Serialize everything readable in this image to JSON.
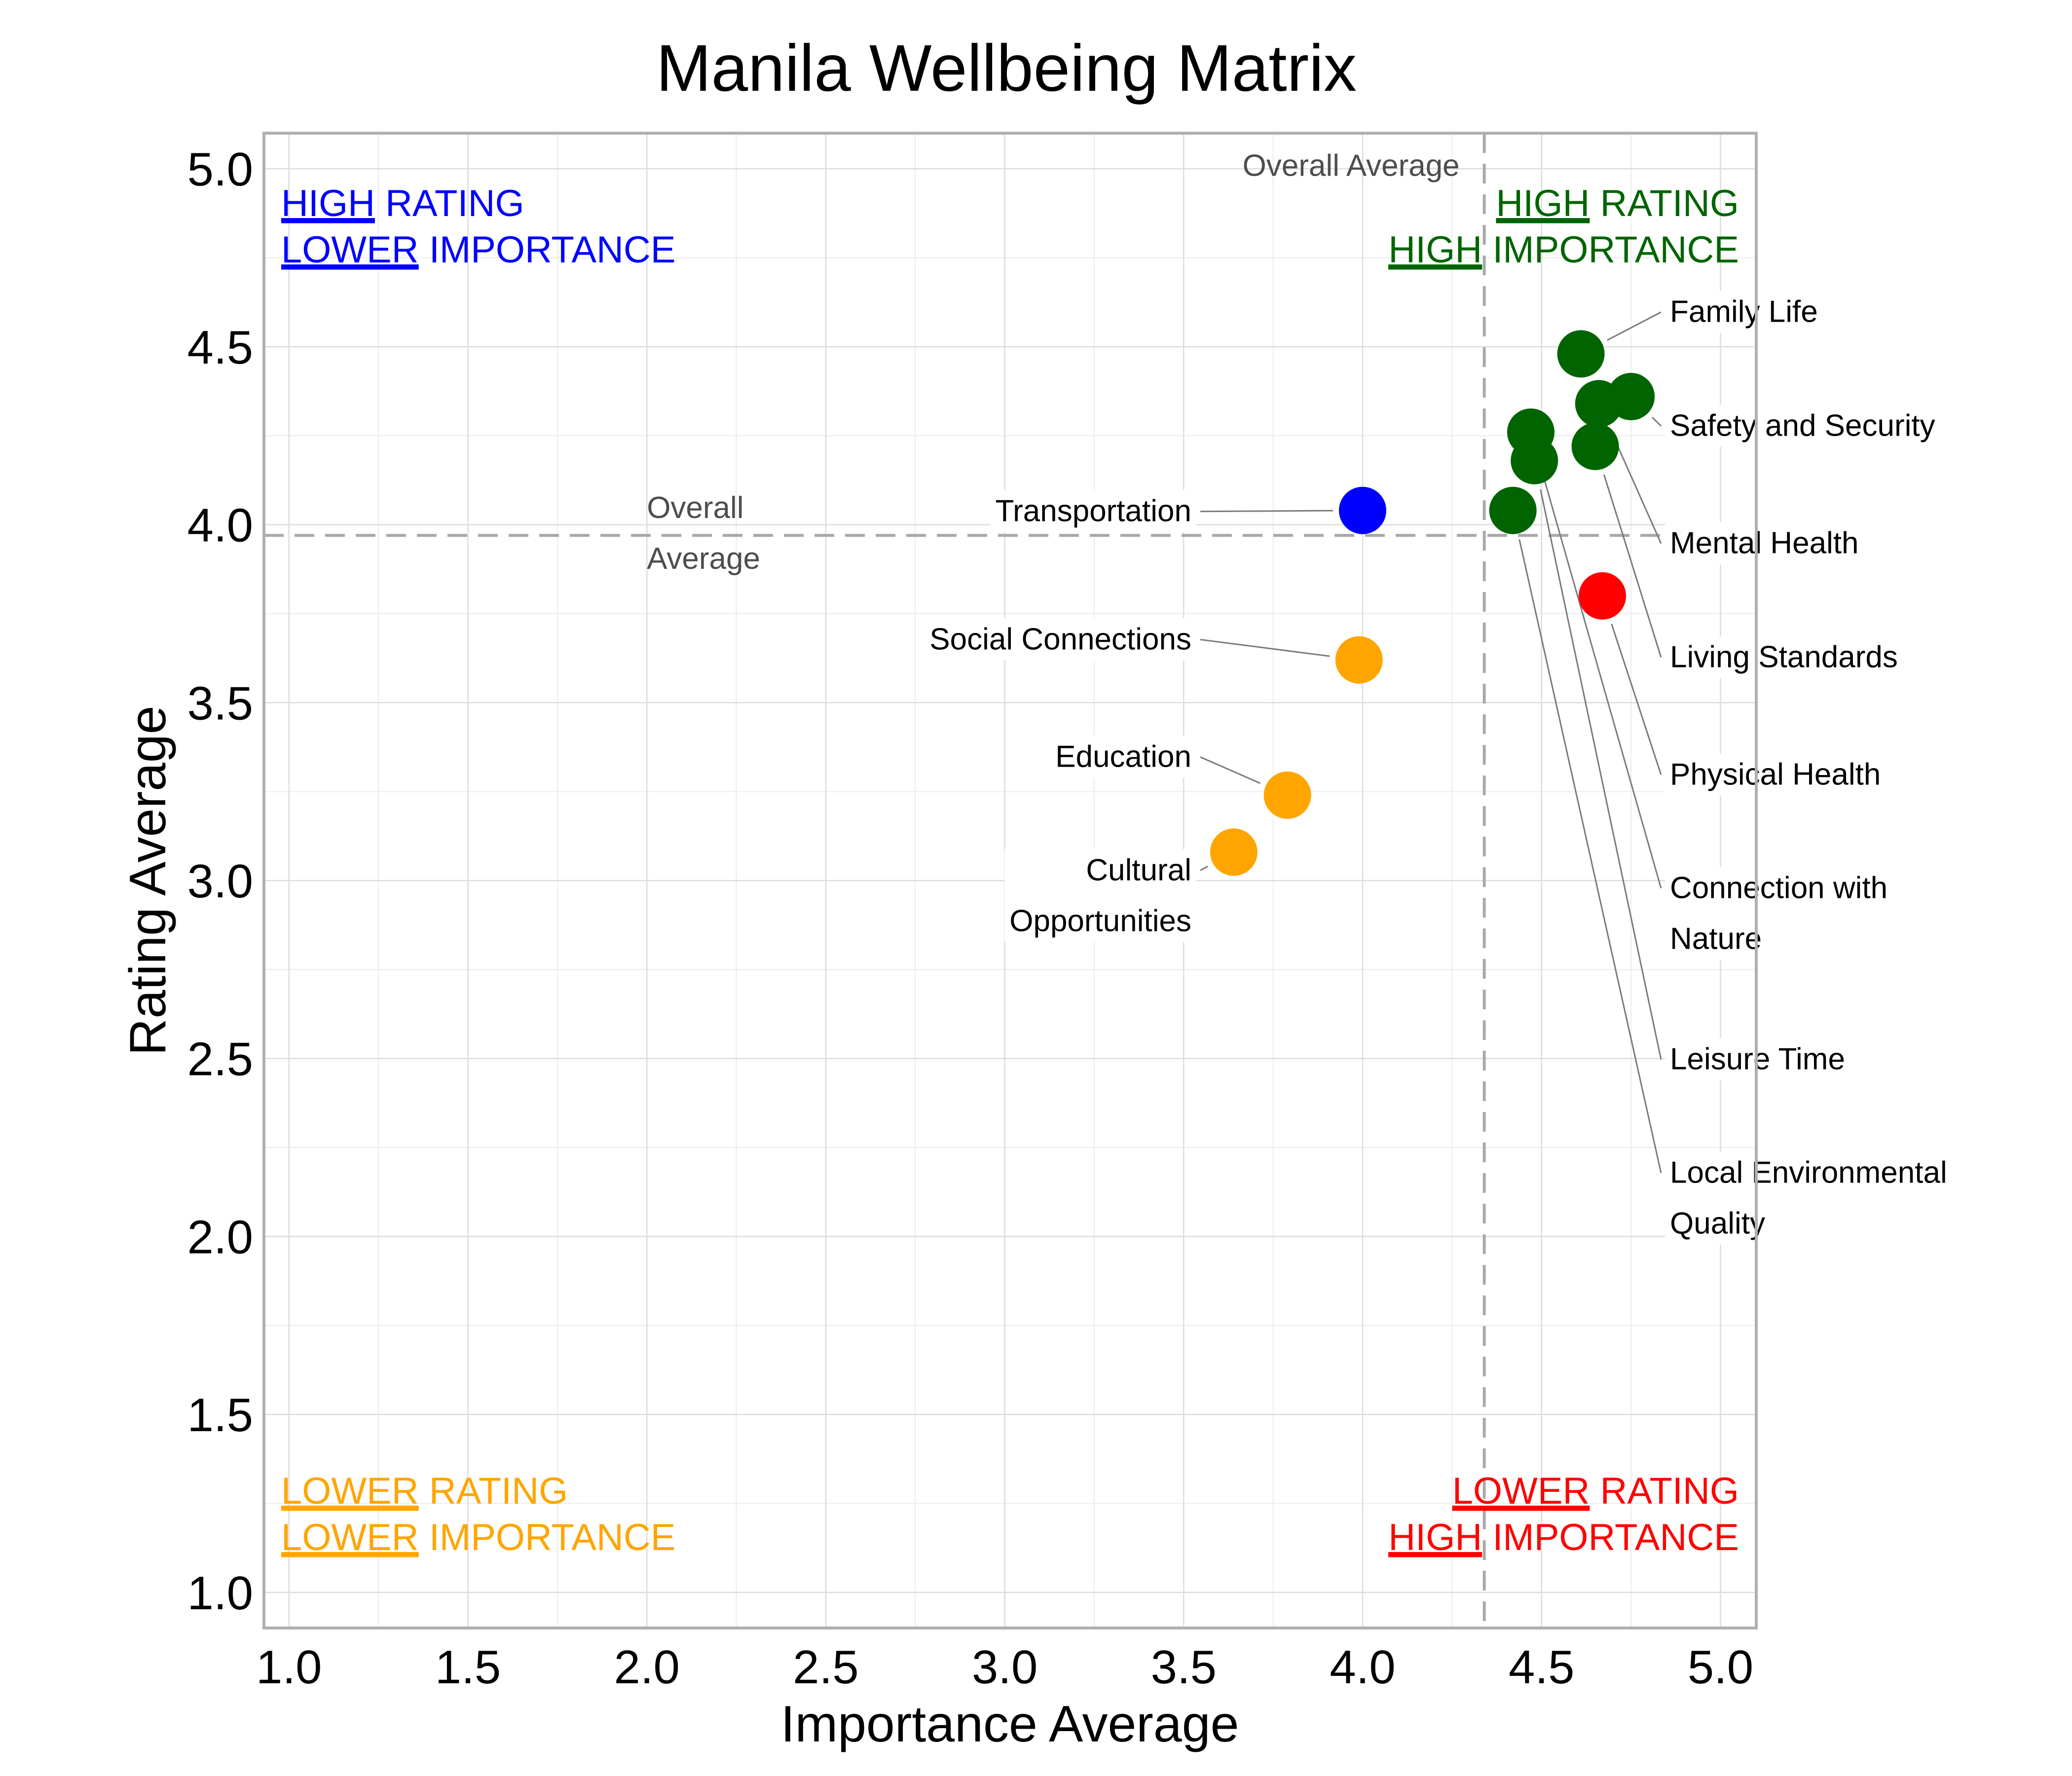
{
  "chart_data": {
    "type": "scatter",
    "title": "Manila Wellbeing Matrix",
    "xlabel": "Importance Average",
    "ylabel": "Rating Average",
    "xlim": [
      0.93,
      5.1
    ],
    "ylim": [
      0.9,
      5.1
    ],
    "xticks": [
      "1.0",
      "1.5",
      "2.0",
      "2.5",
      "3.0",
      "3.5",
      "4.0",
      "4.5",
      "5.0"
    ],
    "yticks": [
      "1.0",
      "1.5",
      "2.0",
      "2.5",
      "3.0",
      "3.5",
      "4.0",
      "4.5",
      "5.0"
    ],
    "grid": true,
    "overall_average": {
      "importance": 4.34,
      "rating": 3.97,
      "vertical_label": "Overall Average",
      "horizontal_label": [
        "Overall",
        "Average"
      ]
    },
    "quadrants": [
      {
        "position": "top-left",
        "color": "#0000ff",
        "lines": [
          [
            "HIGH",
            " RATING"
          ],
          [
            "LOWER",
            " IMPORTANCE"
          ]
        ]
      },
      {
        "position": "top-right",
        "color": "#006400",
        "lines": [
          [
            "HIGH",
            " RATING"
          ],
          [
            "HIGH",
            " IMPORTANCE"
          ]
        ]
      },
      {
        "position": "bottom-left",
        "color": "#ffa500",
        "lines": [
          [
            "LOWER",
            " RATING"
          ],
          [
            "LOWER",
            " IMPORTANCE"
          ]
        ]
      },
      {
        "position": "bottom-right",
        "color": "#ff0000",
        "lines": [
          [
            "LOWER",
            " RATING"
          ],
          [
            "HIGH",
            " IMPORTANCE"
          ]
        ]
      }
    ],
    "points": [
      {
        "name": "Family Life",
        "label_lines": [
          "Family Life"
        ],
        "x": 4.61,
        "y": 4.48,
        "color": "#006400",
        "side": "right",
        "label_y": 4.6
      },
      {
        "name": "Safety and Security",
        "label_lines": [
          "Safety and Security"
        ],
        "x": 4.75,
        "y": 4.36,
        "color": "#006400",
        "side": "right",
        "label_y": 4.28
      },
      {
        "name": "Mental Health",
        "label_lines": [
          "Mental Health"
        ],
        "x": 4.66,
        "y": 4.34,
        "color": "#006400",
        "side": "right",
        "label_y": 3.95
      },
      {
        "name": "Living Standards",
        "label_lines": [
          "Living Standards"
        ],
        "x": 4.65,
        "y": 4.22,
        "color": "#006400",
        "side": "right",
        "label_y": 3.63
      },
      {
        "name": "Physical Health",
        "label_lines": [
          "Physical Health"
        ],
        "x": 4.67,
        "y": 3.8,
        "color": "#ff0000",
        "side": "right",
        "label_y": 3.3
      },
      {
        "name": "Connection with Nature",
        "label_lines": [
          "Connection with",
          "Nature"
        ],
        "x": 4.47,
        "y": 4.26,
        "color": "#006400",
        "side": "right",
        "label_y": 2.91
      },
      {
        "name": "Leisure Time",
        "label_lines": [
          "Leisure Time"
        ],
        "x": 4.48,
        "y": 4.18,
        "color": "#006400",
        "side": "right",
        "label_y": 2.5
      },
      {
        "name": "Local Environmental Quality",
        "label_lines": [
          "Local Environmental",
          "Quality"
        ],
        "x": 4.42,
        "y": 4.04,
        "color": "#006400",
        "side": "right",
        "label_y": 2.11
      },
      {
        "name": "Transportation",
        "label_lines": [
          "Transportation"
        ],
        "x": 4.0,
        "y": 4.04,
        "color": "#0000ff",
        "side": "left",
        "label_y": 4.04
      },
      {
        "name": "Social Connections",
        "label_lines": [
          "Social Connections"
        ],
        "x": 3.99,
        "y": 3.62,
        "color": "#ffa500",
        "side": "left",
        "label_y": 3.68
      },
      {
        "name": "Education",
        "label_lines": [
          "Education"
        ],
        "x": 3.79,
        "y": 3.24,
        "color": "#ffa500",
        "side": "left",
        "label_y": 3.35
      },
      {
        "name": "Cultural Opportunities",
        "label_lines": [
          "Cultural",
          "Opportunities"
        ],
        "x": 3.64,
        "y": 3.08,
        "color": "#ffa500",
        "side": "left",
        "label_y": 2.96
      }
    ]
  }
}
